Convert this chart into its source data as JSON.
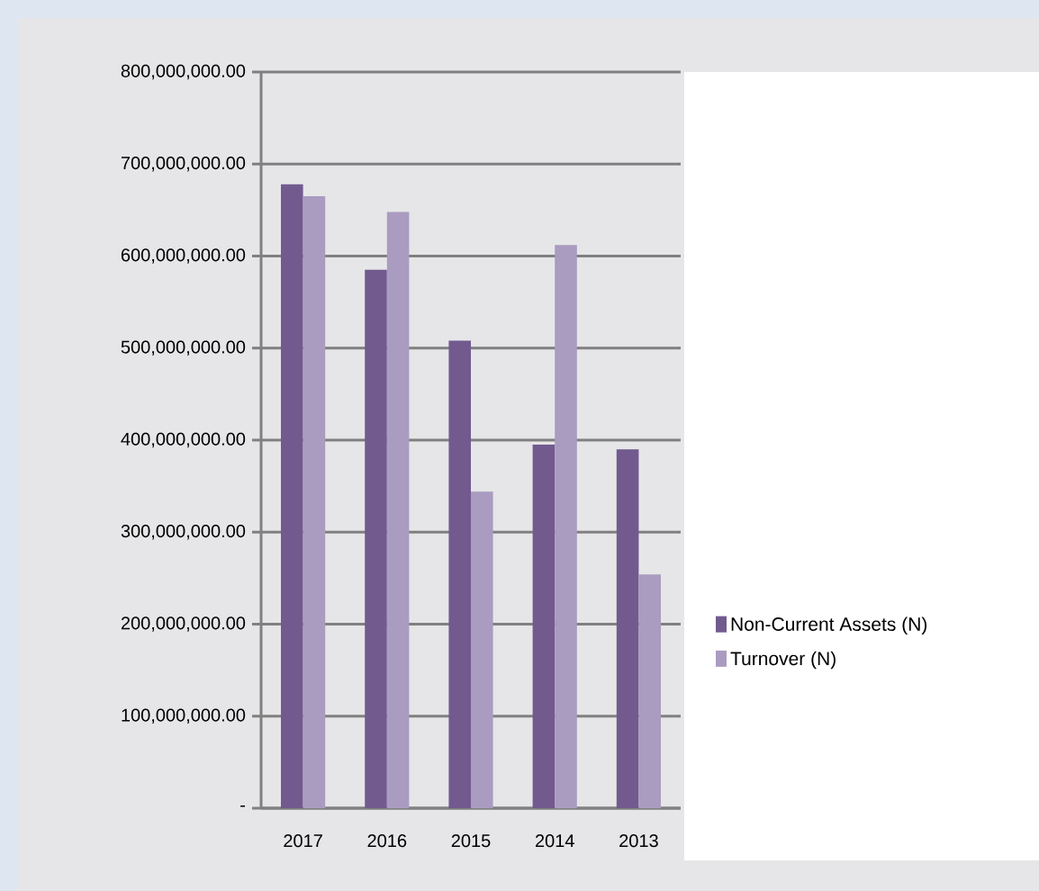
{
  "chart_data": {
    "type": "bar",
    "categories": [
      "2017",
      "2016",
      "2015",
      "2014",
      "2013"
    ],
    "series": [
      {
        "name": "Non-Current Assets (N)",
        "color": "#725a8f",
        "values": [
          678000000,
          585000000,
          508000000,
          395000000,
          390000000
        ]
      },
      {
        "name": "Turnover (N)",
        "color": "#aa9bc0",
        "values": [
          665000000,
          648000000,
          344000000,
          612000000,
          254000000
        ]
      }
    ],
    "ylim": [
      0,
      800000000
    ],
    "yticks": [
      {
        "value": 0,
        "label": "-"
      },
      {
        "value": 100000000,
        "label": "100,000,000.00"
      },
      {
        "value": 200000000,
        "label": "200,000,000.00"
      },
      {
        "value": 300000000,
        "label": "300,000,000.00"
      },
      {
        "value": 400000000,
        "label": "400,000,000.00"
      },
      {
        "value": 500000000,
        "label": "500,000,000.00"
      },
      {
        "value": 600000000,
        "label": "600,000,000.00"
      },
      {
        "value": 700000000,
        "label": "700,000,000.00"
      },
      {
        "value": 800000000,
        "label": "800,000,000.00"
      }
    ],
    "grid": "y",
    "legend": "right"
  }
}
